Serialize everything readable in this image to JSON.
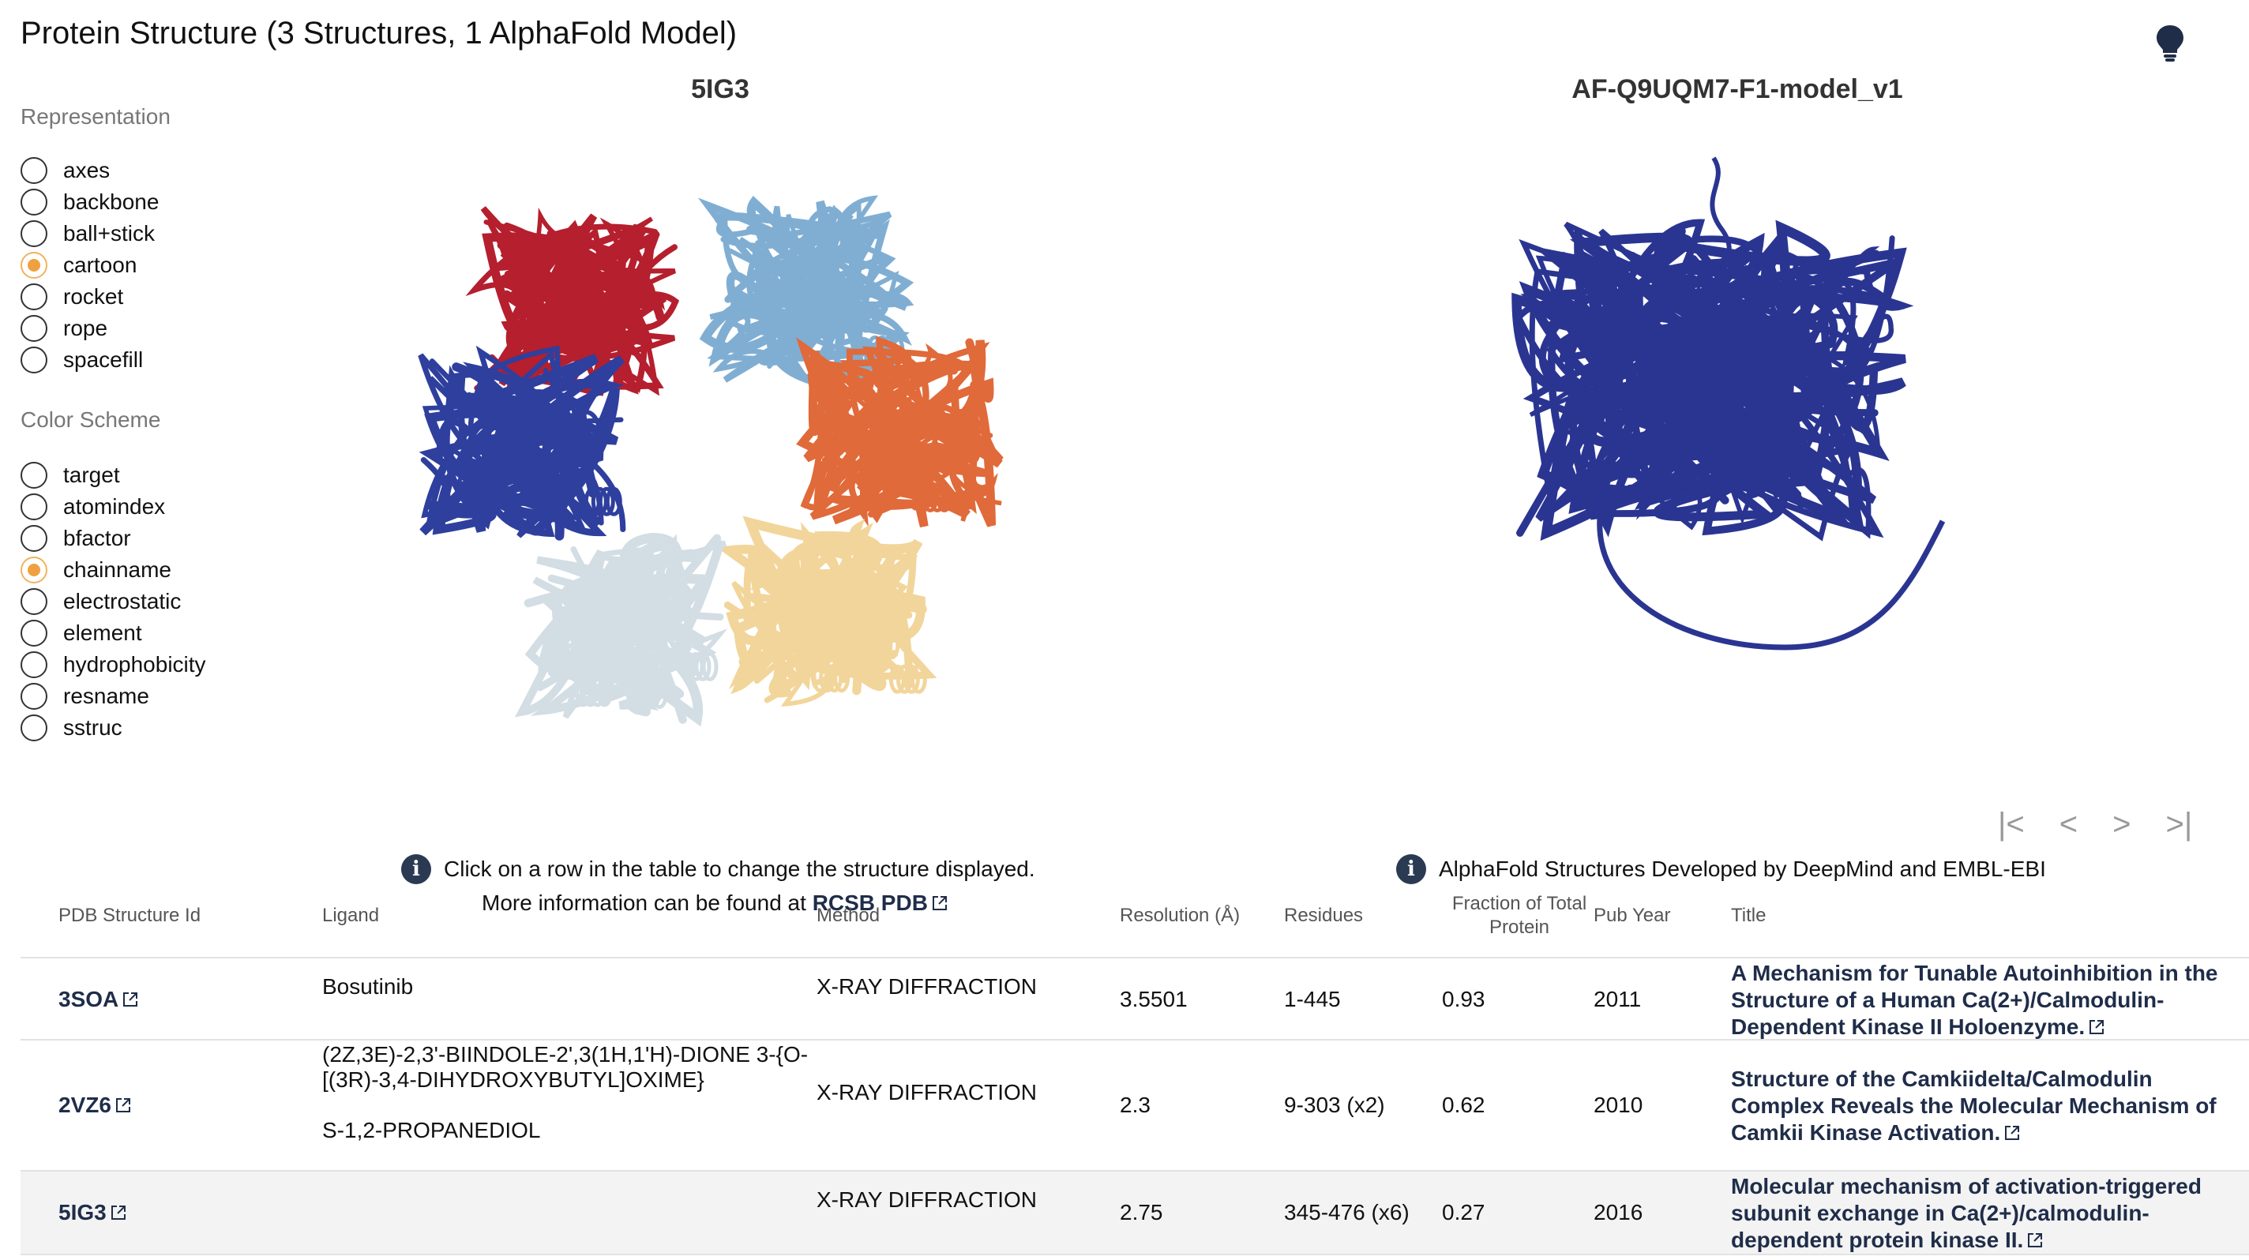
{
  "page": {
    "title": "Protein Structure (3 Structures, 1 AlphaFold Model)"
  },
  "representation": {
    "label": "Representation",
    "options": [
      "axes",
      "backbone",
      "ball+stick",
      "cartoon",
      "rocket",
      "rope",
      "spacefill"
    ],
    "selected": "cartoon"
  },
  "color_scheme": {
    "label": "Color Scheme",
    "options": [
      "target",
      "atomindex",
      "bfactor",
      "chainname",
      "electrostatic",
      "element",
      "hydrophobicity",
      "resname",
      "sstruc"
    ],
    "selected": "chainname"
  },
  "viewers": {
    "left": {
      "title": "5IG3",
      "info": "Click on a row in the table to change the structure displayed.",
      "info2_prefix": "More information can be found at ",
      "info2_link": "RCSB PDB",
      "chain_colors": [
        "#b51f2e",
        "#80aed3",
        "#e06a3a",
        "#f2d59a",
        "#d3dde4",
        "#2f3f9e"
      ]
    },
    "right": {
      "title": "AF-Q9UQM7-F1-model_v1",
      "info": "AlphaFold Structures Developed by DeepMind and EMBL-EBI",
      "model_color": "#2a3592"
    }
  },
  "pager": {
    "first": "|<",
    "prev": "<",
    "next": ">",
    "last": ">|"
  },
  "table": {
    "headers": {
      "pdb_id": "PDB Structure Id",
      "ligand": "Ligand",
      "method": "Method",
      "resolution": "Resolution (Å)",
      "residues": "Residues",
      "fraction": "Fraction of Total Protein",
      "year": "Pub Year",
      "title": "Title"
    },
    "rows": [
      {
        "pdb_id": "3SOA",
        "ligand": "Bosutinib",
        "ligand2": "",
        "method": "X-RAY DIFFRACTION",
        "resolution": "3.5501",
        "residues": "1-445",
        "fraction": "0.93",
        "year": "2011",
        "title": "A Mechanism for Tunable Autoinhibition in the Structure of a Human Ca(2+)/Calmodulin-Dependent Kinase II Holoenzyme."
      },
      {
        "pdb_id": "2VZ6",
        "ligand": "(2Z,3E)-2,3'-BIINDOLE-2',3(1H,1'H)-DIONE 3-{O-[(3R)-3,4-DIHYDROXYBUTYL]OXIME}",
        "ligand2": "S-1,2-PROPANEDIOL",
        "method": "X-RAY DIFFRACTION",
        "resolution": "2.3",
        "residues": "9-303 (x2)",
        "fraction": "0.62",
        "year": "2010",
        "title": "Structure of the Camkiidelta/Calmodulin Complex Reveals the Molecular Mechanism of Camkii Kinase Activation."
      },
      {
        "pdb_id": "5IG3",
        "ligand": "",
        "ligand2": "",
        "method": "X-RAY DIFFRACTION",
        "resolution": "2.75",
        "residues": "345-476 (x6)",
        "fraction": "0.27",
        "year": "2016",
        "title": "Molecular mechanism of activation-triggered subunit exchange in Ca(2+)/calmodulin-dependent protein kinase II."
      }
    ]
  }
}
